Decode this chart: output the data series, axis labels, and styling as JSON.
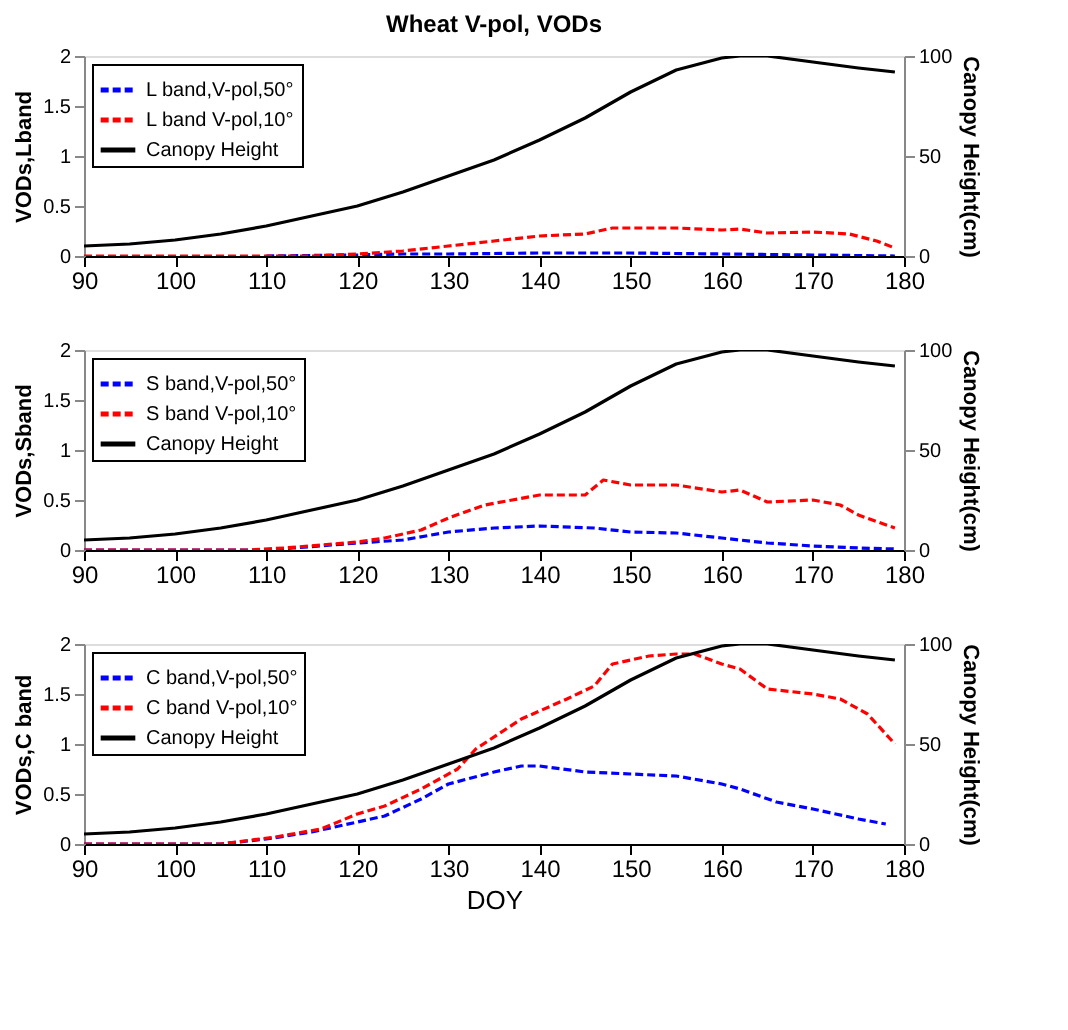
{
  "chart_data": [
    {
      "type": "line",
      "title": "Wheat V-pol, VODs",
      "ylabel": "VODs,Lband",
      "y2label": "Canopy Height(cm)",
      "xlim": [
        90,
        180
      ],
      "xticks": [
        90,
        100,
        110,
        120,
        130,
        140,
        150,
        160,
        170,
        180
      ],
      "ylim": [
        0,
        2
      ],
      "yticks": [
        0,
        0.5,
        1,
        1.5,
        2
      ],
      "y2lim": [
        0,
        100
      ],
      "y2ticks": [
        0,
        50,
        100
      ],
      "grid": false,
      "legend": "top left",
      "marker": "none",
      "series": [
        {
          "name": "L band,V-pol,50°",
          "color": "#0000ff",
          "line_style": "dashed",
          "x": [
            110,
            120,
            125,
            130,
            140,
            150,
            160,
            170,
            179
          ],
          "values": [
            0,
            0.01,
            0.02,
            0.02,
            0.03,
            0.03,
            0.02,
            0.01,
            0
          ]
        },
        {
          "name": "L band V-pol,10°",
          "color": "#ff0000",
          "line_style": "dashed",
          "x": [
            90,
            100,
            110,
            115,
            120,
            125,
            130,
            135,
            140,
            145,
            148,
            155,
            160,
            162,
            165,
            170,
            174,
            177,
            179
          ],
          "values": [
            0,
            0,
            0,
            0,
            0.02,
            0.05,
            0.1,
            0.15,
            0.2,
            0.22,
            0.28,
            0.28,
            0.26,
            0.27,
            0.23,
            0.24,
            0.22,
            0.15,
            0.08
          ]
        },
        {
          "name": "Canopy Height",
          "color": "#000000",
          "line_style": "solid",
          "axis": "y2",
          "x": [
            90,
            95,
            100,
            105,
            110,
            115,
            120,
            125,
            130,
            135,
            140,
            145,
            150,
            155,
            160,
            162,
            165,
            170,
            175,
            179
          ],
          "values": [
            5,
            6,
            8,
            11,
            15,
            20,
            25,
            32,
            40,
            48,
            58,
            69,
            82,
            93,
            99,
            100,
            100,
            97,
            94,
            92
          ]
        }
      ]
    },
    {
      "type": "line",
      "ylabel": "VODs,Sband",
      "y2label": "Canopy Height(cm)",
      "xlim": [
        90,
        180
      ],
      "xticks": [
        90,
        100,
        110,
        120,
        130,
        140,
        150,
        160,
        170,
        180
      ],
      "ylim": [
        0,
        2
      ],
      "yticks": [
        0,
        0.5,
        1,
        1.5,
        2
      ],
      "y2lim": [
        0,
        100
      ],
      "y2ticks": [
        0,
        50,
        100
      ],
      "grid": false,
      "legend": "top left",
      "marker": "none",
      "series": [
        {
          "name": "S band,V-pol,50°",
          "color": "#0000ff",
          "line_style": "dashed",
          "x": [
            90,
            100,
            110,
            113,
            120,
            125,
            130,
            135,
            140,
            146,
            150,
            155,
            160,
            165,
            170,
            175,
            179
          ],
          "values": [
            0,
            0,
            0,
            0.02,
            0.07,
            0.1,
            0.18,
            0.22,
            0.24,
            0.22,
            0.18,
            0.17,
            0.12,
            0.07,
            0.04,
            0.02,
            0.01
          ]
        },
        {
          "name": "S band V-pol,10°",
          "color": "#ff0000",
          "line_style": "dashed",
          "x": [
            90,
            100,
            108,
            112,
            120,
            123,
            127,
            130,
            134,
            137,
            140,
            145,
            147,
            150,
            155,
            160,
            162,
            165,
            170,
            173,
            175,
            179
          ],
          "values": [
            0,
            0,
            0,
            0.02,
            0.08,
            0.12,
            0.2,
            0.32,
            0.45,
            0.5,
            0.55,
            0.55,
            0.7,
            0.65,
            0.65,
            0.58,
            0.6,
            0.48,
            0.5,
            0.45,
            0.35,
            0.22
          ]
        },
        {
          "name": "Canopy Height",
          "color": "#000000",
          "line_style": "solid",
          "axis": "y2",
          "x": [
            90,
            95,
            100,
            105,
            110,
            115,
            120,
            125,
            130,
            135,
            140,
            145,
            150,
            155,
            160,
            162,
            165,
            170,
            175,
            179
          ],
          "values": [
            5,
            6,
            8,
            11,
            15,
            20,
            25,
            32,
            40,
            48,
            58,
            69,
            82,
            93,
            99,
            100,
            100,
            97,
            94,
            92
          ]
        }
      ]
    },
    {
      "type": "line",
      "xlabel": "DOY",
      "ylabel": "VODs,C band",
      "y2label": "Canopy Height(cm)",
      "xlim": [
        90,
        180
      ],
      "xticks": [
        90,
        100,
        110,
        120,
        130,
        140,
        150,
        160,
        170,
        180
      ],
      "ylim": [
        0,
        2
      ],
      "yticks": [
        0,
        0.5,
        1,
        1.5,
        2
      ],
      "y2lim": [
        0,
        100
      ],
      "y2ticks": [
        0,
        50,
        100
      ],
      "grid": false,
      "legend": "top left",
      "marker": "none",
      "series": [
        {
          "name": "C band,V-pol,50°",
          "color": "#0000ff",
          "line_style": "dashed",
          "x": [
            90,
            100,
            105,
            110,
            115,
            120,
            123,
            127,
            130,
            135,
            138,
            140,
            145,
            150,
            155,
            160,
            162,
            166,
            170,
            175,
            178
          ],
          "values": [
            0,
            0,
            0,
            0.05,
            0.12,
            0.22,
            0.28,
            0.45,
            0.6,
            0.72,
            0.78,
            0.78,
            0.72,
            0.7,
            0.68,
            0.6,
            0.55,
            0.42,
            0.35,
            0.25,
            0.2
          ]
        },
        {
          "name": "C band V-pol,10°",
          "color": "#ff0000",
          "line_style": "dashed",
          "x": [
            90,
            100,
            105,
            111,
            116,
            120,
            123,
            127,
            131,
            133,
            138,
            143,
            146,
            148,
            152,
            155,
            157,
            160,
            162,
            165,
            170,
            173,
            176,
            179
          ],
          "values": [
            0,
            0,
            0,
            0.07,
            0.15,
            0.3,
            0.38,
            0.55,
            0.75,
            0.95,
            1.25,
            1.45,
            1.58,
            1.8,
            1.88,
            1.9,
            1.9,
            1.8,
            1.75,
            1.55,
            1.5,
            1.45,
            1.3,
            1.0
          ]
        },
        {
          "name": "Canopy Height",
          "color": "#000000",
          "line_style": "solid",
          "axis": "y2",
          "x": [
            90,
            95,
            100,
            105,
            110,
            115,
            120,
            125,
            130,
            135,
            140,
            145,
            150,
            155,
            160,
            162,
            165,
            170,
            175,
            179
          ],
          "values": [
            5,
            6,
            8,
            11,
            15,
            20,
            25,
            32,
            40,
            48,
            58,
            69,
            82,
            93,
            99,
            100,
            100,
            97,
            94,
            92
          ]
        }
      ]
    }
  ]
}
